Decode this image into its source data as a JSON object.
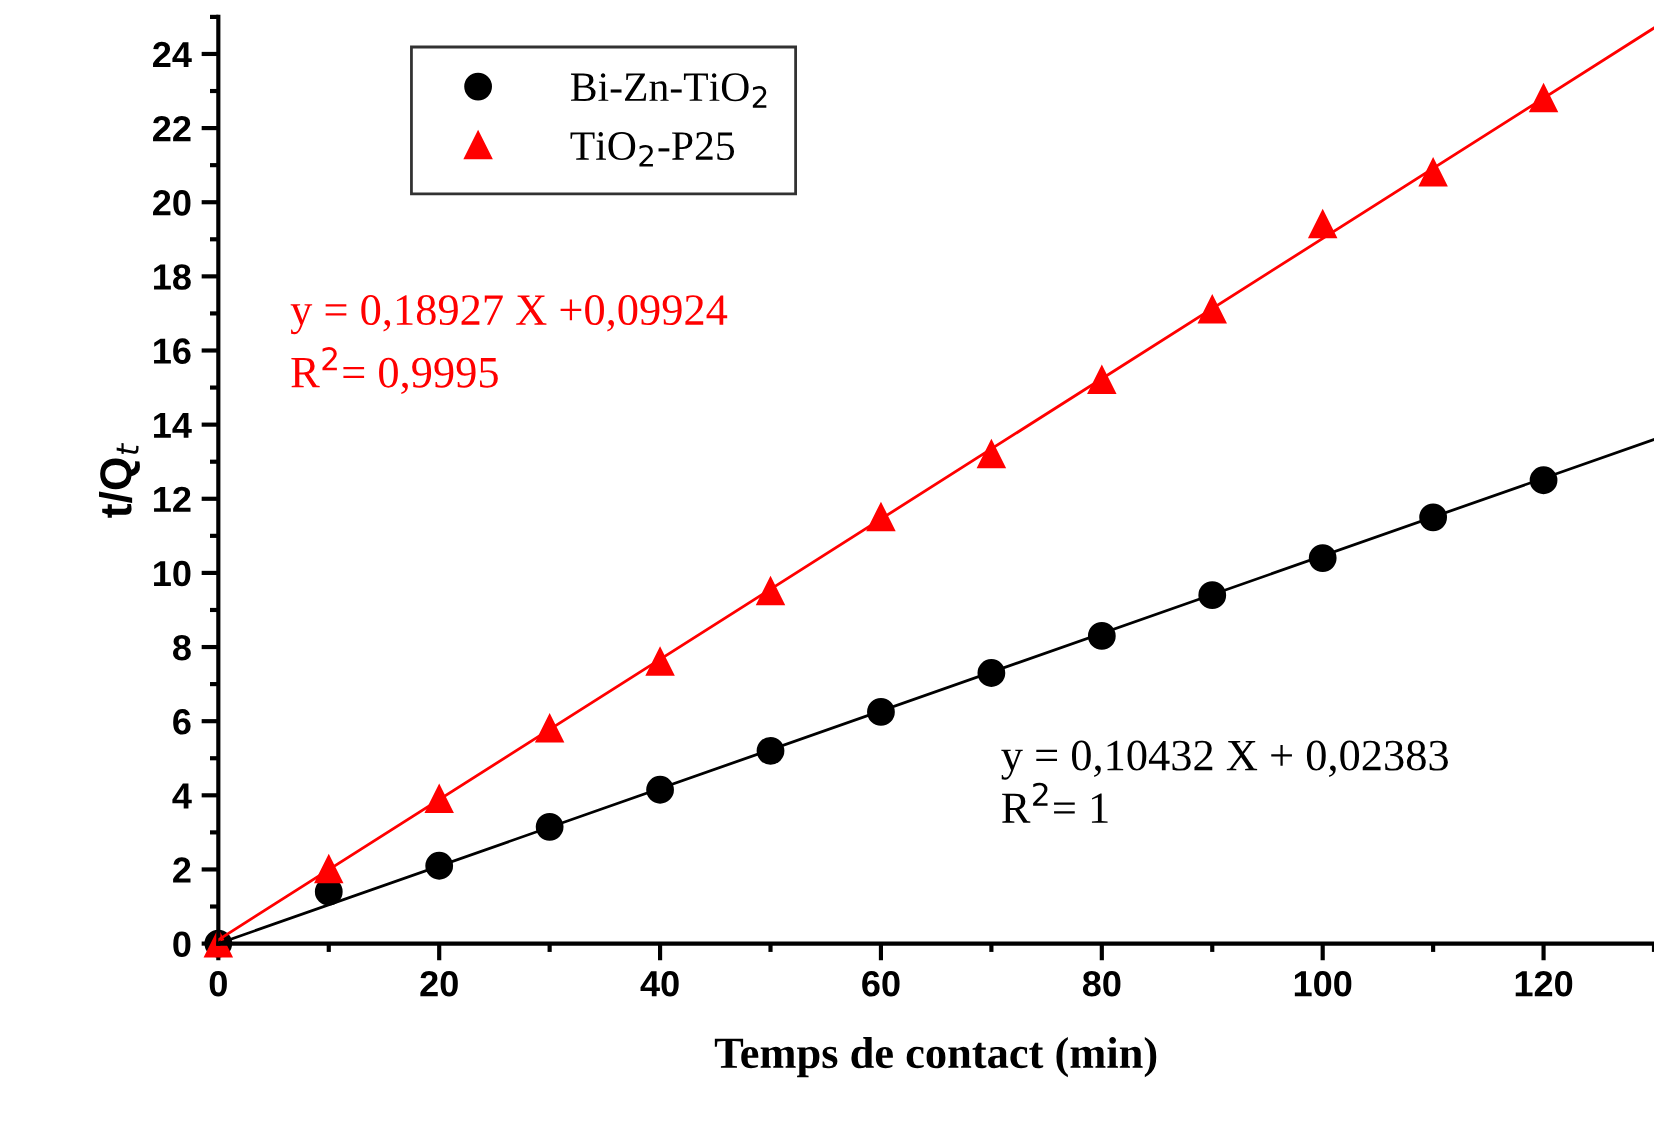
{
  "chart_data": {
    "type": "scatter",
    "xlabel": "Temps de contact (min)",
    "ylabel": "t/Q$_{t}$",
    "xlim": [
      0,
      130
    ],
    "ylim": [
      0,
      25
    ],
    "xticks": [
      0,
      20,
      40,
      60,
      80,
      100,
      120
    ],
    "yticks": [
      0,
      2,
      4,
      6,
      8,
      10,
      12,
      14,
      16,
      18,
      20,
      22,
      24
    ],
    "grid": false,
    "legend": "top left",
    "series": [
      {
        "name": "Bi-Zn-TiO$_{2}$",
        "color": "#000000",
        "marker": "circle",
        "x": [
          0,
          10,
          20,
          30,
          40,
          50,
          60,
          70,
          80,
          90,
          100,
          110,
          120
        ],
        "values": [
          0,
          1.4,
          2.1,
          3.15,
          4.15,
          5.2,
          6.25,
          7.3,
          8.3,
          9.4,
          10.4,
          11.5,
          12.5
        ]
      },
      {
        "name": "TiO$_{2}$-P25",
        "color": "#ff0000",
        "marker": "triangle",
        "x": [
          0,
          10,
          20,
          30,
          40,
          50,
          60,
          70,
          80,
          90,
          100,
          110,
          120
        ],
        "values": [
          0,
          2.0,
          3.9,
          5.8,
          7.6,
          9.5,
          11.5,
          13.2,
          15.2,
          17.1,
          19.4,
          20.8,
          22.8
        ]
      },
      {
        "type": "line",
        "color": "#000000",
        "x": [
          0,
          130
        ],
        "values": [
          0,
          13.6
        ]
      },
      {
        "type": "line",
        "color": "#ff0000",
        "x": [
          0,
          130
        ],
        "values": [
          0.1,
          24.7
        ]
      }
    ],
    "annotations": [
      "y = 0,18927 X +0,09924\nR$^{2}$= 0,9995",
      "y = 0,10432 X + 0,02383\nR$^{2}$= 1"
    ]
  }
}
